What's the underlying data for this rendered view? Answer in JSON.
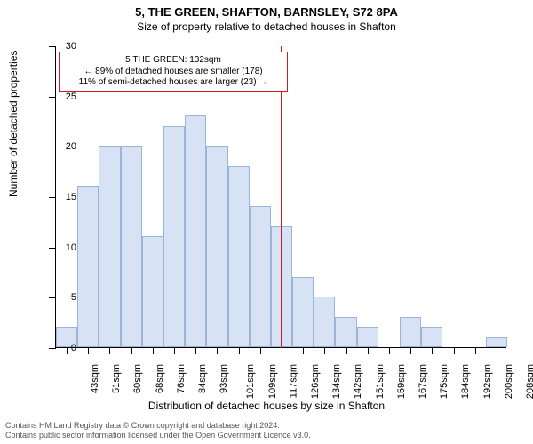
{
  "title_line1": "5, THE GREEN, SHAFTON, BARNSLEY, S72 8PA",
  "title_line2": "Size of property relative to detached houses in Shafton",
  "title_fontsize": 13,
  "subtitle_fontsize": 12,
  "ylabel": "Number of detached properties",
  "xlabel": "Distribution of detached houses by size in Shafton",
  "axis_label_fontsize": 12,
  "tick_fontsize": 11,
  "chart": {
    "type": "histogram",
    "ylim": [
      0,
      30
    ],
    "ytick_step": 5,
    "categories": [
      "43sqm",
      "51sqm",
      "60sqm",
      "68sqm",
      "76sqm",
      "84sqm",
      "93sqm",
      "101sqm",
      "109sqm",
      "117sqm",
      "126sqm",
      "134sqm",
      "142sqm",
      "151sqm",
      "159sqm",
      "167sqm",
      "175sqm",
      "184sqm",
      "192sqm",
      "200sqm",
      "208sqm"
    ],
    "values": [
      2,
      16,
      20,
      20,
      11,
      22,
      23,
      20,
      18,
      14,
      12,
      7,
      5,
      3,
      2,
      0,
      3,
      2,
      0,
      0,
      1
    ],
    "bar_fill": "#d7e2f4",
    "bar_border": "#9db4d9",
    "background": "#ffffff",
    "marker": {
      "index_after": 10.5,
      "color": "#d01c24"
    }
  },
  "annotation": {
    "line1": "5 THE GREEN: 132sqm",
    "line2": "← 89% of detached houses are smaller (178)",
    "line3": "11% of semi-detached houses are larger (23) →",
    "border_color": "#d01c24",
    "fontsize": 10
  },
  "footer": {
    "line1": "Contains HM Land Registry data © Crown copyright and database right 2024.",
    "line2": "Contains public sector information licensed under the Open Government Licence v3.0.",
    "fontsize": 9,
    "color": "#555555"
  }
}
